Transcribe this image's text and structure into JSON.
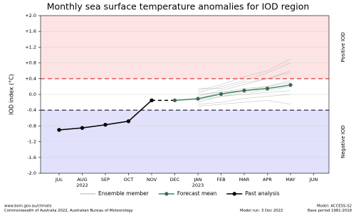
{
  "chart_data": {
    "type": "line",
    "title": "Monthly sea surface temperature anomalies for IOD region",
    "y_label": "IOD index (°C)",
    "categories": [
      "JUL",
      "AUG",
      "SEP",
      "OCT",
      "NOV",
      "DEC",
      "JAN",
      "FEB",
      "MAR",
      "APR",
      "MAY",
      "JUN"
    ],
    "year_labels": [
      {
        "at": "AUG",
        "label": "2022"
      },
      {
        "at": "JAN",
        "label": "2023"
      }
    ],
    "ylim": [
      -2.0,
      2.0
    ],
    "yticks": [
      {
        "value": 2.0,
        "label": "+2.0"
      },
      {
        "value": 1.6,
        "label": "+1.6"
      },
      {
        "value": 1.2,
        "label": "+1.2"
      },
      {
        "value": 0.8,
        "label": "+0.8"
      },
      {
        "value": 0.4,
        "label": "+0.4"
      },
      {
        "value": 0,
        "label": "0.0"
      },
      {
        "value": -0.4,
        "label": "-0.4"
      },
      {
        "value": -0.8,
        "label": "-0.8"
      },
      {
        "value": -1.2,
        "label": "-1.2"
      },
      {
        "value": -1.6,
        "label": "-1.6"
      },
      {
        "value": -2.0,
        "label": "-2.0"
      }
    ],
    "grid": true,
    "thresholds": [
      {
        "value": 0.4,
        "color": "#e8474a",
        "fill": "#fde4e4",
        "label": "Positive IOD"
      },
      {
        "value": -0.4,
        "color": "#3a3a5e",
        "fill": "#e1e1fb",
        "label": "Negative IOD"
      }
    ],
    "ensemble": {
      "name": "Ensemble member",
      "color": "#9a9a9a",
      "members": [
        [
          null,
          null,
          null,
          null,
          null,
          null,
          -0.05,
          0.1,
          0.25,
          0.4,
          0.55,
          null
        ],
        [
          null,
          null,
          null,
          null,
          null,
          null,
          -0.15,
          -0.05,
          0.05,
          0.1,
          0.2,
          null
        ],
        [
          null,
          null,
          null,
          null,
          null,
          null,
          0.05,
          0.2,
          0.35,
          0.55,
          0.8,
          null
        ],
        [
          null,
          null,
          null,
          null,
          null,
          null,
          -0.25,
          -0.2,
          -0.1,
          -0.05,
          0.0,
          null
        ],
        [
          null,
          null,
          null,
          null,
          null,
          null,
          -0.1,
          0.05,
          0.15,
          0.2,
          0.35,
          null
        ],
        [
          null,
          null,
          null,
          null,
          null,
          null,
          0.1,
          0.25,
          0.45,
          0.6,
          0.9,
          null
        ],
        [
          null,
          null,
          null,
          null,
          null,
          null,
          -0.3,
          -0.25,
          -0.2,
          -0.15,
          -0.25,
          null
        ],
        [
          null,
          null,
          null,
          null,
          null,
          null,
          0.0,
          0.05,
          0.1,
          0.2,
          0.3,
          null
        ],
        [
          null,
          null,
          null,
          null,
          null,
          null,
          -0.2,
          -0.05,
          0.0,
          0.05,
          0.1,
          null
        ],
        [
          null,
          null,
          null,
          null,
          null,
          null,
          0.15,
          0.15,
          0.3,
          0.4,
          0.6,
          null
        ]
      ]
    },
    "series": [
      {
        "name": "Forecast mean",
        "color": "#2e8b57",
        "marker_fill": "#555555",
        "values": [
          null,
          null,
          null,
          null,
          null,
          -0.15,
          -0.11,
          0.01,
          0.1,
          0.15,
          0.24,
          null
        ]
      },
      {
        "name": "Past analysis",
        "color": "#000000",
        "marker_fill": "#000000",
        "values": [
          -0.9,
          -0.85,
          -0.77,
          -0.68,
          -0.15,
          null,
          null,
          null,
          null,
          null,
          null,
          null
        ]
      }
    ],
    "footer_left": [
      "www.bom.gov.au/climate",
      "Commonwealth of Australia 2022, Australian Bureau of Meteorology"
    ],
    "footer_middle": "Model run: 3 Dec 2022",
    "footer_right": [
      "Model: ACCESS-S2",
      "Base period 1981-2018"
    ]
  }
}
